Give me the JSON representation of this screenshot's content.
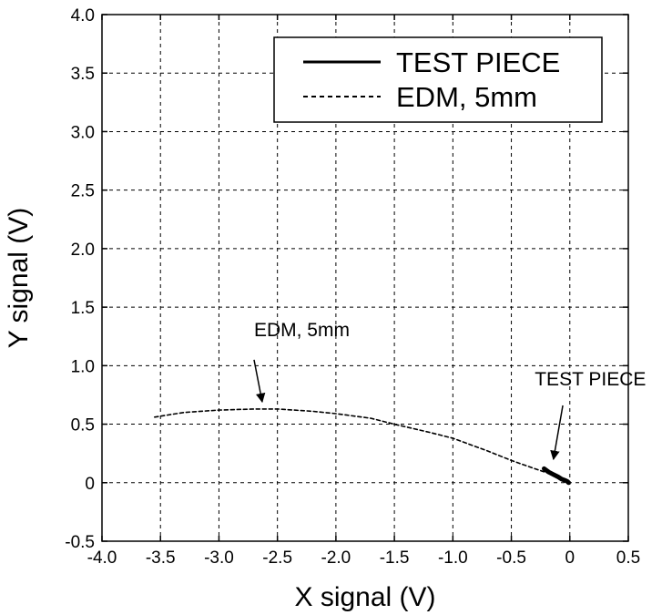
{
  "chart_data": {
    "type": "line",
    "xlabel": "X signal (V)",
    "ylabel": "Y signal (V)",
    "xlim": [
      -4.0,
      0.5
    ],
    "ylim": [
      -0.5,
      4.0
    ],
    "x_ticks": [
      "-4.0",
      "-3.5",
      "-3.0",
      "-2.5",
      "-2.0",
      "-1.5",
      "-1.0",
      "-0.5",
      "0",
      "0.5"
    ],
    "y_ticks": [
      "-0.5",
      "0",
      "0.5",
      "1.0",
      "1.5",
      "2.0",
      "2.5",
      "3.0",
      "3.5",
      "4.0"
    ],
    "grid": true,
    "legend_position": "top-right",
    "series": [
      {
        "name": "TEST PIECE",
        "style": "solid",
        "x": [
          -0.22,
          -0.18,
          -0.14,
          -0.1,
          -0.07,
          -0.04,
          -0.02,
          -0.01
        ],
        "y": [
          0.12,
          0.09,
          0.07,
          0.05,
          0.03,
          0.02,
          0.01,
          0.0
        ]
      },
      {
        "name": "EDM, 5mm",
        "style": "dashed",
        "x": [
          -3.55,
          -3.3,
          -3.0,
          -2.7,
          -2.5,
          -2.2,
          -2.0,
          -1.7,
          -1.5,
          -1.2,
          -1.0,
          -0.7,
          -0.5,
          -0.3,
          -0.15,
          -0.02
        ],
        "y": [
          0.56,
          0.6,
          0.62,
          0.63,
          0.63,
          0.61,
          0.59,
          0.55,
          0.5,
          0.43,
          0.38,
          0.27,
          0.19,
          0.12,
          0.07,
          0.0
        ]
      }
    ],
    "annotations": [
      {
        "text": "EDM, 5mm",
        "label_at": [
          -2.7,
          1.25
        ],
        "arrow_from": [
          -2.7,
          1.05
        ],
        "arrow_to": [
          -2.63,
          0.69
        ]
      },
      {
        "text": "TEST PIECE",
        "label_at": [
          -0.3,
          0.83
        ],
        "arrow_from": [
          -0.06,
          0.66
        ],
        "arrow_to": [
          -0.14,
          0.2
        ]
      }
    ]
  }
}
